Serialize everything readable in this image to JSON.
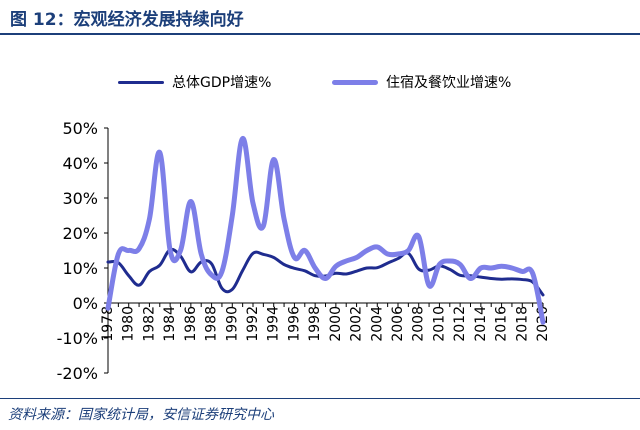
{
  "header": {
    "title": "图 12：宏观经济发展持续向好"
  },
  "footer": {
    "source": "资料来源：国家统计局，安信证券研究中心"
  },
  "colors": {
    "gdp": "#1f2c8f",
    "hospitality": "#7d7fe8",
    "title": "#1c3f7a"
  },
  "chart_data": {
    "type": "line",
    "title": "",
    "xlabel": "",
    "ylabel": "",
    "ylim": [
      -20,
      50
    ],
    "y_ticks": [
      "50%",
      "40%",
      "30%",
      "20%",
      "10%",
      "0%",
      "-10%",
      "-20%"
    ],
    "x_ticks": [
      "1978",
      "1980",
      "1982",
      "1984",
      "1986",
      "1988",
      "1990",
      "1992",
      "1994",
      "1996",
      "1998",
      "2000",
      "2002",
      "2004",
      "2006",
      "2008",
      "2010",
      "2012",
      "2014",
      "2016",
      "2018",
      "2020"
    ],
    "legend_position": "top",
    "grid": false,
    "x": [
      1978,
      1979,
      1980,
      1981,
      1982,
      1983,
      1984,
      1985,
      1986,
      1987,
      1988,
      1989,
      1990,
      1991,
      1992,
      1993,
      1994,
      1995,
      1996,
      1997,
      1998,
      1999,
      2000,
      2001,
      2002,
      2003,
      2004,
      2005,
      2006,
      2007,
      2008,
      2009,
      2010,
      2011,
      2012,
      2013,
      2014,
      2015,
      2016,
      2017,
      2018,
      2019,
      2020
    ],
    "series": [
      {
        "name": "总体GDP增速%",
        "color": "#1f2c8f",
        "values": [
          11.7,
          11.5,
          7.8,
          5.1,
          9.0,
          10.8,
          15.2,
          13.4,
          8.9,
          11.7,
          11.2,
          4.2,
          3.9,
          9.3,
          14.2,
          13.9,
          13.0,
          11.0,
          9.9,
          9.2,
          7.8,
          7.7,
          8.5,
          8.3,
          9.1,
          10.0,
          10.1,
          11.4,
          12.7,
          14.2,
          9.7,
          9.4,
          10.6,
          9.6,
          7.9,
          7.8,
          7.4,
          7.0,
          6.8,
          6.9,
          6.7,
          6.0,
          2.3
        ]
      },
      {
        "name": "住宿及餐饮业增速%",
        "color": "#7d7fe8",
        "values": [
          -1.5,
          14.0,
          15.0,
          15.5,
          24.0,
          43.0,
          15.0,
          15.0,
          29.0,
          14.0,
          8.0,
          9.0,
          25.0,
          47.0,
          28.5,
          22.0,
          41.0,
          24.0,
          13.0,
          15.0,
          10.0,
          7.0,
          10.5,
          12.0,
          13.0,
          15.0,
          16.0,
          14.0,
          14.0,
          15.0,
          19.0,
          5.0,
          11.0,
          12.0,
          11.0,
          7.0,
          10.0,
          10.0,
          10.5,
          10.0,
          9.0,
          8.5,
          -5.5
        ]
      }
    ]
  }
}
